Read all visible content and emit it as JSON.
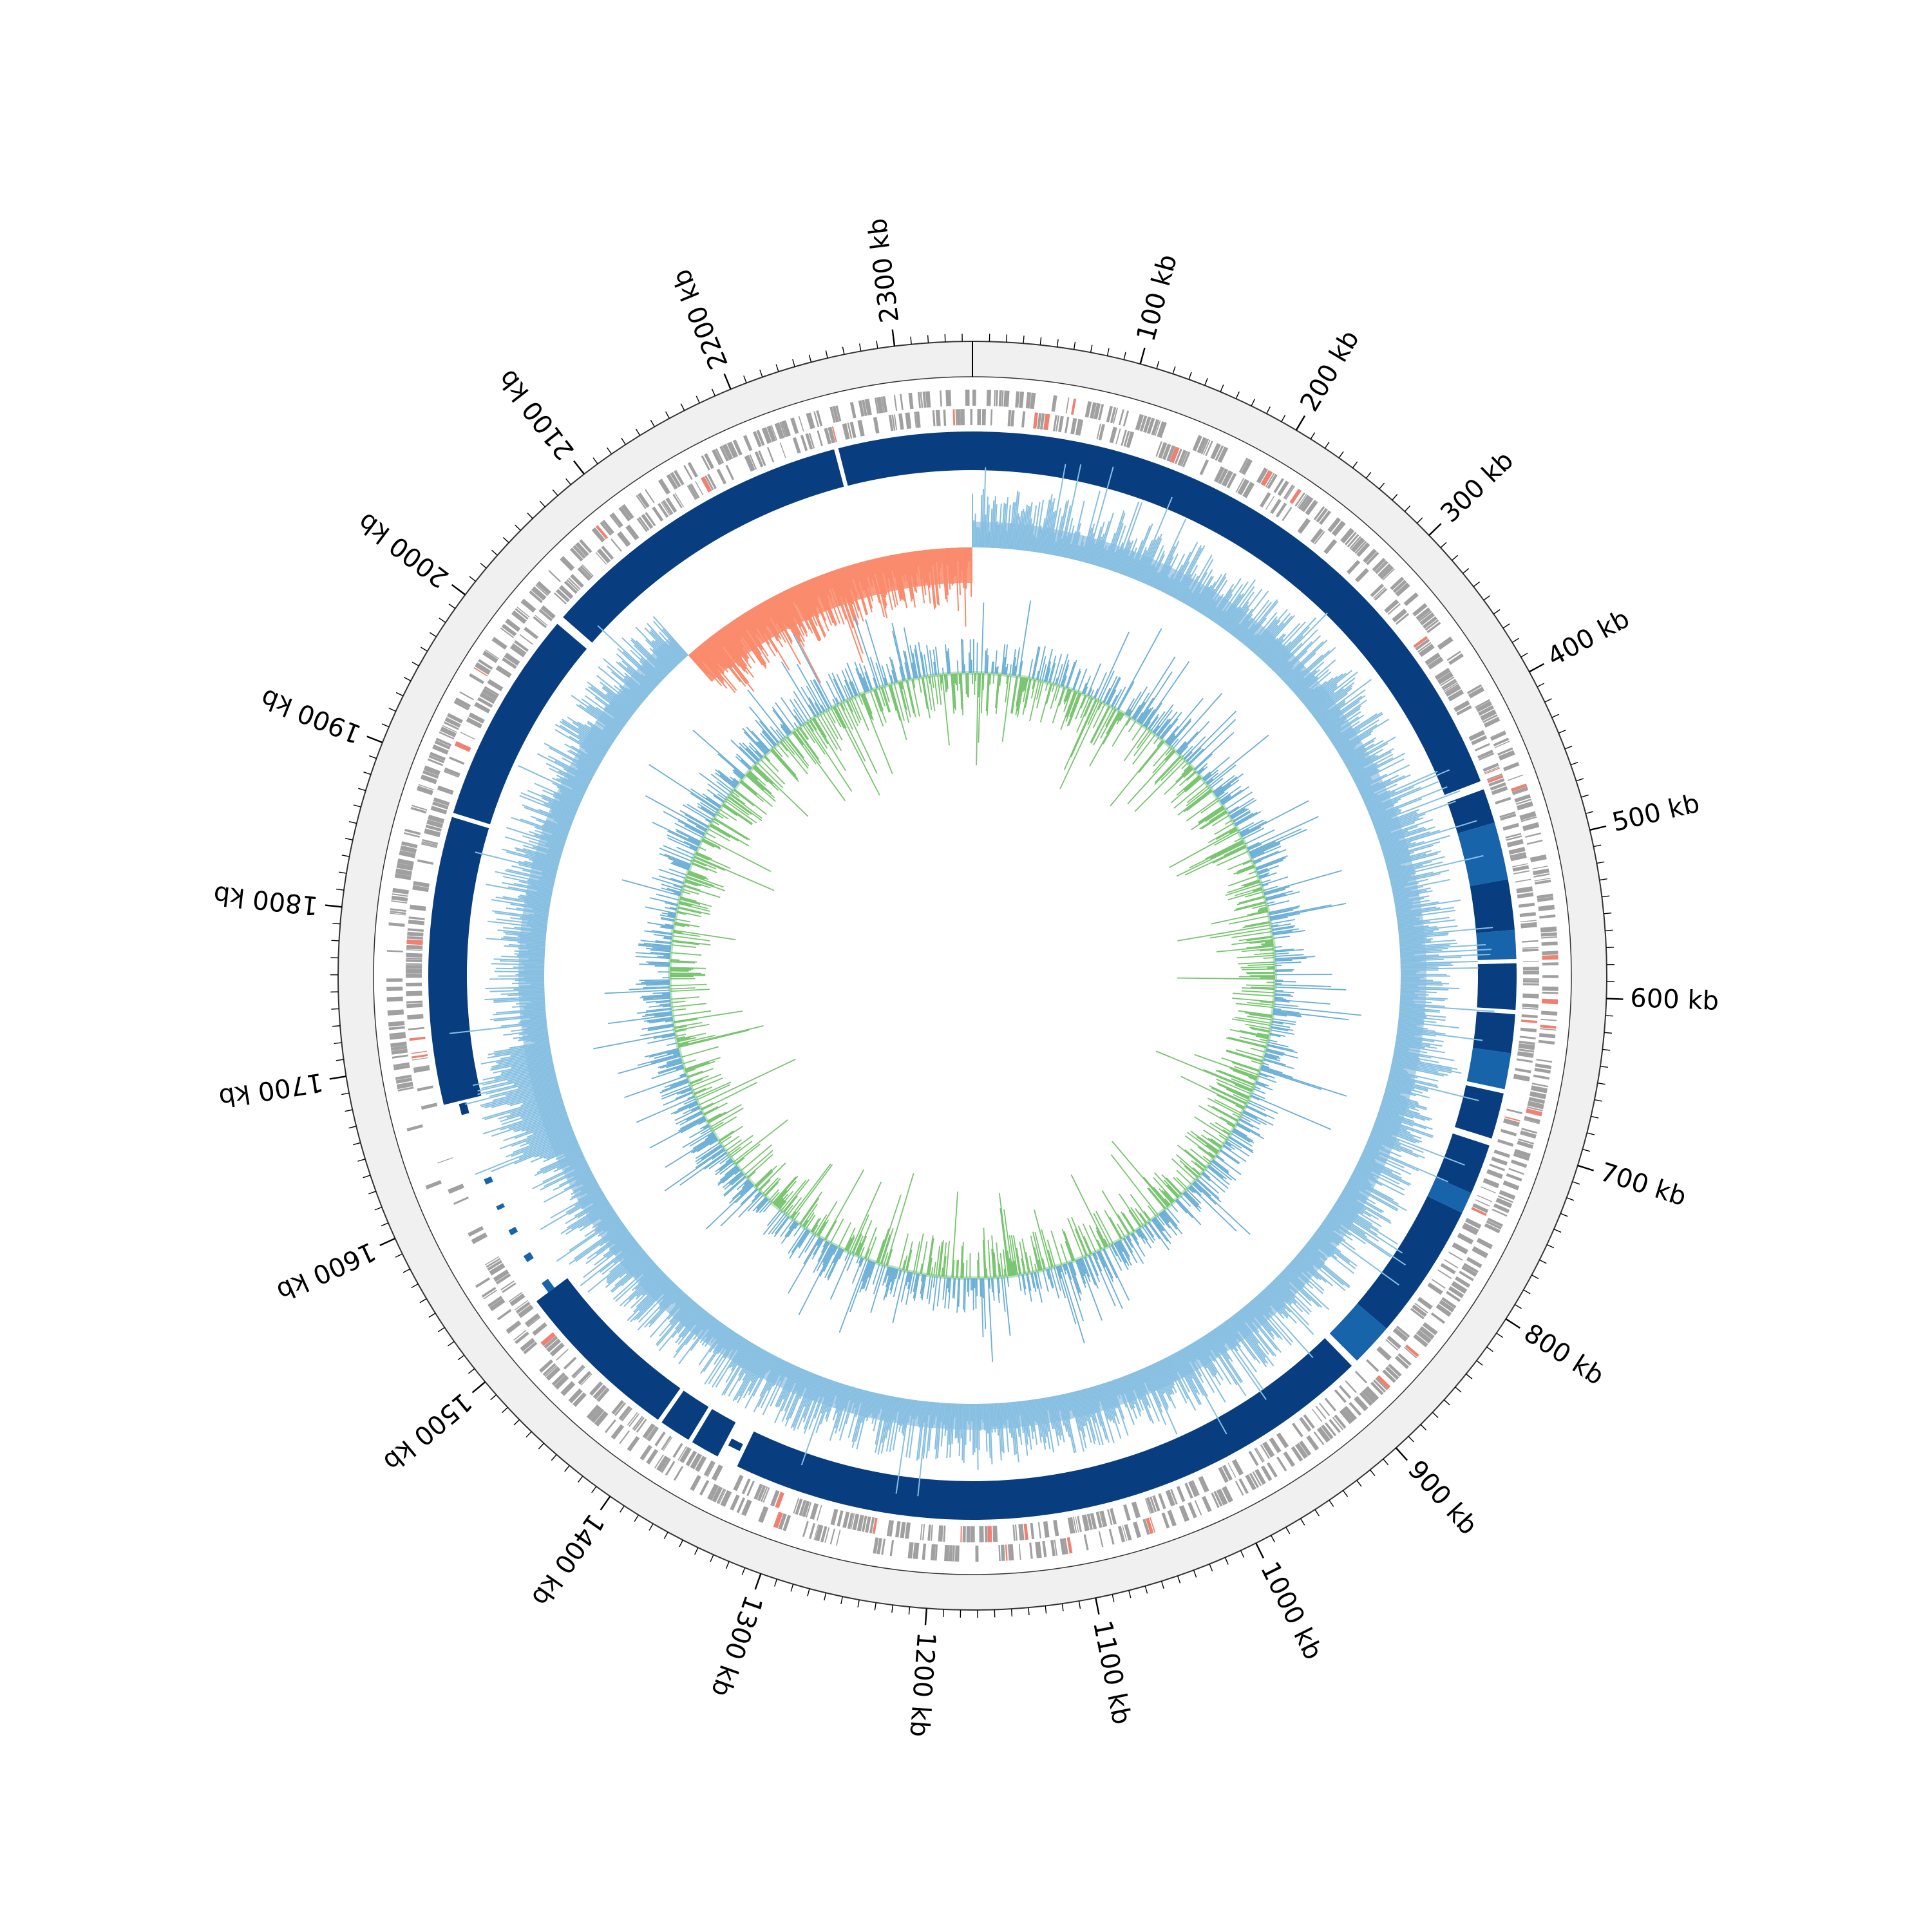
{
  "figure": {
    "kind": "circular genome map",
    "genome_length_kb": 2346,
    "label_unit": "kb"
  },
  "colors": {
    "background": "#ffffff",
    "outer_band": "#f0f0f0",
    "ring_line": "#333333",
    "gene_features": "#a0a0a0",
    "gene_highlight": "#f08070",
    "alignment_dark": "#083d7f",
    "alignment_mid": "#1764ab",
    "gc_content_positive": "#86bfe2",
    "gc_content_negative": "#fa8a6c",
    "gc_content_fill_positive": "#a8cde6",
    "gc_content_fill_negative": "#fb9173",
    "gc_skew_positive": "#6aaed6",
    "gc_skew_negative": "#77c46f",
    "gc_skew_fill": "#a1d99b"
  },
  "tracks": [
    {
      "id": "ruler",
      "description": ""
    },
    {
      "id": "genes",
      "description": ""
    },
    {
      "id": "alignment",
      "description": ""
    },
    {
      "id": "gc_content",
      "description": ""
    },
    {
      "id": "gc_skew",
      "description": ""
    }
  ],
  "axis": {
    "major_ticks": [
      {
        "pos": 100,
        "label": "100 kb"
      },
      {
        "pos": 200,
        "label": "200 kb"
      },
      {
        "pos": 300,
        "label": "300 kb"
      },
      {
        "pos": 400,
        "label": "400 kb"
      },
      {
        "pos": 500,
        "label": "500 kb"
      },
      {
        "pos": 600,
        "label": "600 kb"
      },
      {
        "pos": 700,
        "label": "700 kb"
      },
      {
        "pos": 800,
        "label": "800 kb"
      },
      {
        "pos": 900,
        "label": "900 kb"
      },
      {
        "pos": 1000,
        "label": "1000 kb"
      },
      {
        "pos": 1100,
        "label": "1100 kb"
      },
      {
        "pos": 1200,
        "label": "1200 kb"
      },
      {
        "pos": 1300,
        "label": "1300 kb"
      },
      {
        "pos": 1400,
        "label": "1400 kb"
      },
      {
        "pos": 1500,
        "label": "1500 kb"
      },
      {
        "pos": 1600,
        "label": "1600 kb"
      },
      {
        "pos": 1700,
        "label": "1700 kb"
      },
      {
        "pos": 1800,
        "label": "1800 kb"
      },
      {
        "pos": 1900,
        "label": "1900 kb"
      },
      {
        "pos": 2000,
        "label": "2000 kb"
      },
      {
        "pos": 2100,
        "label": "2100 kb"
      },
      {
        "pos": 2200,
        "label": "2200 kb"
      },
      {
        "pos": 2300,
        "label": "2300 kb"
      }
    ],
    "minor_tick_step_kb": 10
  },
  "alignment_segments": [
    [
      0,
      450,
      "dark"
    ],
    [
      456,
      480,
      "dark"
    ],
    [
      480,
      520,
      "mid"
    ],
    [
      520,
      555,
      "dark"
    ],
    [
      555,
      575,
      "mid"
    ],
    [
      578,
      610,
      "dark"
    ],
    [
      613,
      640,
      "dark"
    ],
    [
      640,
      665,
      "mid"
    ],
    [
      668,
      700,
      "dark"
    ],
    [
      705,
      740,
      "dark"
    ],
    [
      740,
      755,
      "mid"
    ],
    [
      755,
      850,
      "dark"
    ],
    [
      850,
      880,
      "mid"
    ],
    [
      885,
      1340,
      "dark"
    ],
    [
      1343,
      1352,
      "dark"
    ],
    [
      1355,
      1375,
      "dark"
    ],
    [
      1378,
      1400,
      "dark"
    ],
    [
      1403,
      1520,
      "dark"
    ],
    [
      1520,
      1528,
      "mid"
    ],
    [
      1546,
      1551,
      "mid"
    ],
    [
      1568,
      1572,
      "mid"
    ],
    [
      1588,
      1591,
      "mid"
    ],
    [
      1608,
      1612,
      "mid"
    ],
    [
      1660,
      1668,
      "dark"
    ],
    [
      1670,
      1870,
      "dark"
    ],
    [
      1873,
      2022,
      "dark"
    ],
    [
      2028,
      2250,
      "dark"
    ],
    [
      2253,
      2346,
      "dark"
    ]
  ],
  "gc_content_regions": [
    {
      "start": 0,
      "end": 2075,
      "sign": "positive"
    },
    {
      "start": 2075,
      "end": 2346,
      "sign": "negative"
    }
  ],
  "gc_skew_regions": [
    {
      "start": 0,
      "end": 1170,
      "sign": "positive"
    },
    {
      "start": 1170,
      "end": 2346,
      "sign": "negative"
    }
  ]
}
